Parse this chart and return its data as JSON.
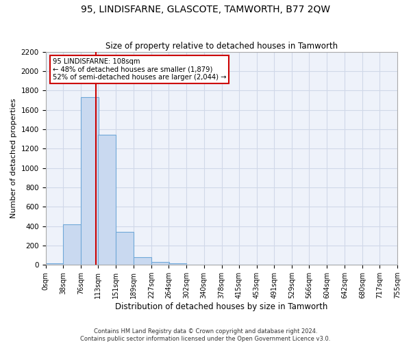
{
  "title": "95, LINDISFARNE, GLASCOTE, TAMWORTH, B77 2QW",
  "subtitle": "Size of property relative to detached houses in Tamworth",
  "xlabel": "Distribution of detached houses by size in Tamworth",
  "ylabel": "Number of detached properties",
  "footer1": "Contains HM Land Registry data © Crown copyright and database right 2024.",
  "footer2": "Contains public sector information licensed under the Open Government Licence v3.0.",
  "bin_edges": [
    0,
    38,
    76,
    113,
    151,
    189,
    227,
    264,
    302,
    340,
    378,
    415,
    453,
    491,
    529,
    566,
    604,
    642,
    680,
    717,
    755
  ],
  "bar_heights": [
    15,
    415,
    1730,
    1340,
    340,
    80,
    30,
    18,
    0,
    0,
    0,
    0,
    0,
    0,
    0,
    0,
    0,
    0,
    0,
    0
  ],
  "bar_color": "#c9d9f0",
  "bar_edgecolor": "#6fa8d8",
  "grid_color": "#d0d8e8",
  "bg_color": "#eef2fa",
  "property_size": 108,
  "vline_color": "#cc0000",
  "annotation_line1": "95 LINDISFARNE: 108sqm",
  "annotation_line2": "← 48% of detached houses are smaller (1,879)",
  "annotation_line3": "52% of semi-detached houses are larger (2,044) →",
  "annotation_box_color": "#cc0000",
  "ylim": [
    0,
    2200
  ],
  "yticks": [
    0,
    200,
    400,
    600,
    800,
    1000,
    1200,
    1400,
    1600,
    1800,
    2000,
    2200
  ]
}
